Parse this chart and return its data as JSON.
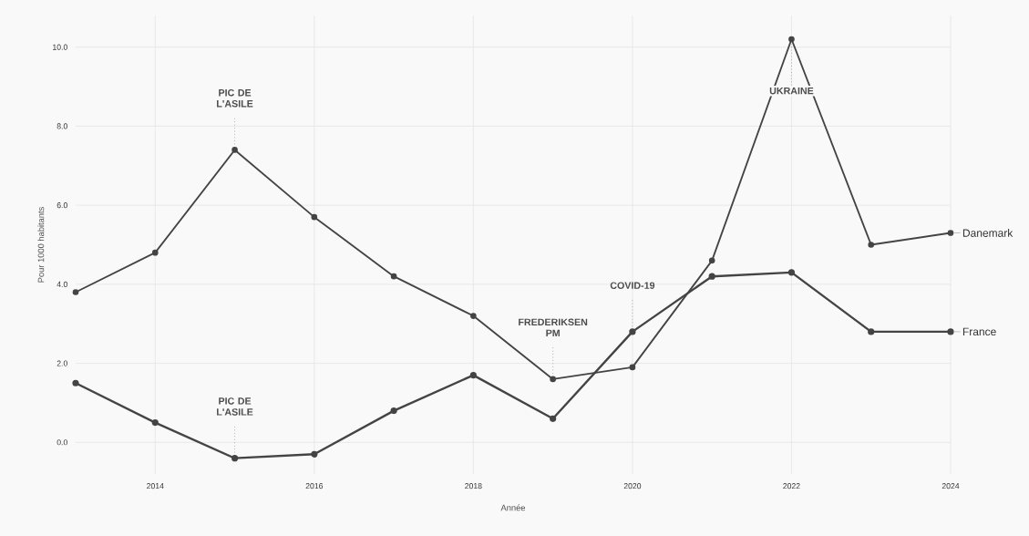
{
  "chart_data": {
    "type": "line",
    "xlabel": "Année",
    "ylabel": "Pour 1000 habitants",
    "x": [
      2013,
      2014,
      2015,
      2016,
      2017,
      2018,
      2019,
      2020,
      2021,
      2022,
      2023,
      2024
    ],
    "series": [
      {
        "name": "Danemark",
        "color": "#444444",
        "values": [
          3.8,
          4.8,
          7.4,
          5.7,
          4.2,
          3.2,
          1.6,
          1.9,
          4.6,
          10.2,
          5.0,
          5.3
        ]
      },
      {
        "name": "France",
        "color": "#444444",
        "values": [
          1.5,
          0.5,
          -0.4,
          -0.3,
          0.8,
          1.7,
          0.6,
          2.8,
          4.2,
          4.3,
          2.8,
          2.8
        ]
      }
    ],
    "xlim": [
      2013,
      2024
    ],
    "xticks": [
      2014,
      2016,
      2018,
      2020,
      2022,
      2024
    ],
    "ylim": [
      -0.8,
      10.8
    ],
    "yticks": [
      {
        "value": 0,
        "label": "0.0"
      },
      {
        "value": 2,
        "label": "2.0"
      },
      {
        "value": 4,
        "label": "4.0"
      },
      {
        "value": 6,
        "label": "6.0"
      },
      {
        "value": 8,
        "label": "8.0"
      },
      {
        "value": 10,
        "label": "10.0"
      }
    ],
    "grid": true,
    "marker": "circle",
    "line_style": "solid",
    "annotations": [
      {
        "text": "PIC DE L'ASILE",
        "x": 2015,
        "y": 7.4
      },
      {
        "text": "PIC DE L'ASILE",
        "x": 2015,
        "y": -0.4
      },
      {
        "text": "FREDERIKSEN PM",
        "x": 2019,
        "y": 1.6
      },
      {
        "text": "COVID-19",
        "x": 2020,
        "y": 2.8
      },
      {
        "text": "UKRAINE",
        "x": 2022,
        "y": 10.2
      }
    ]
  }
}
